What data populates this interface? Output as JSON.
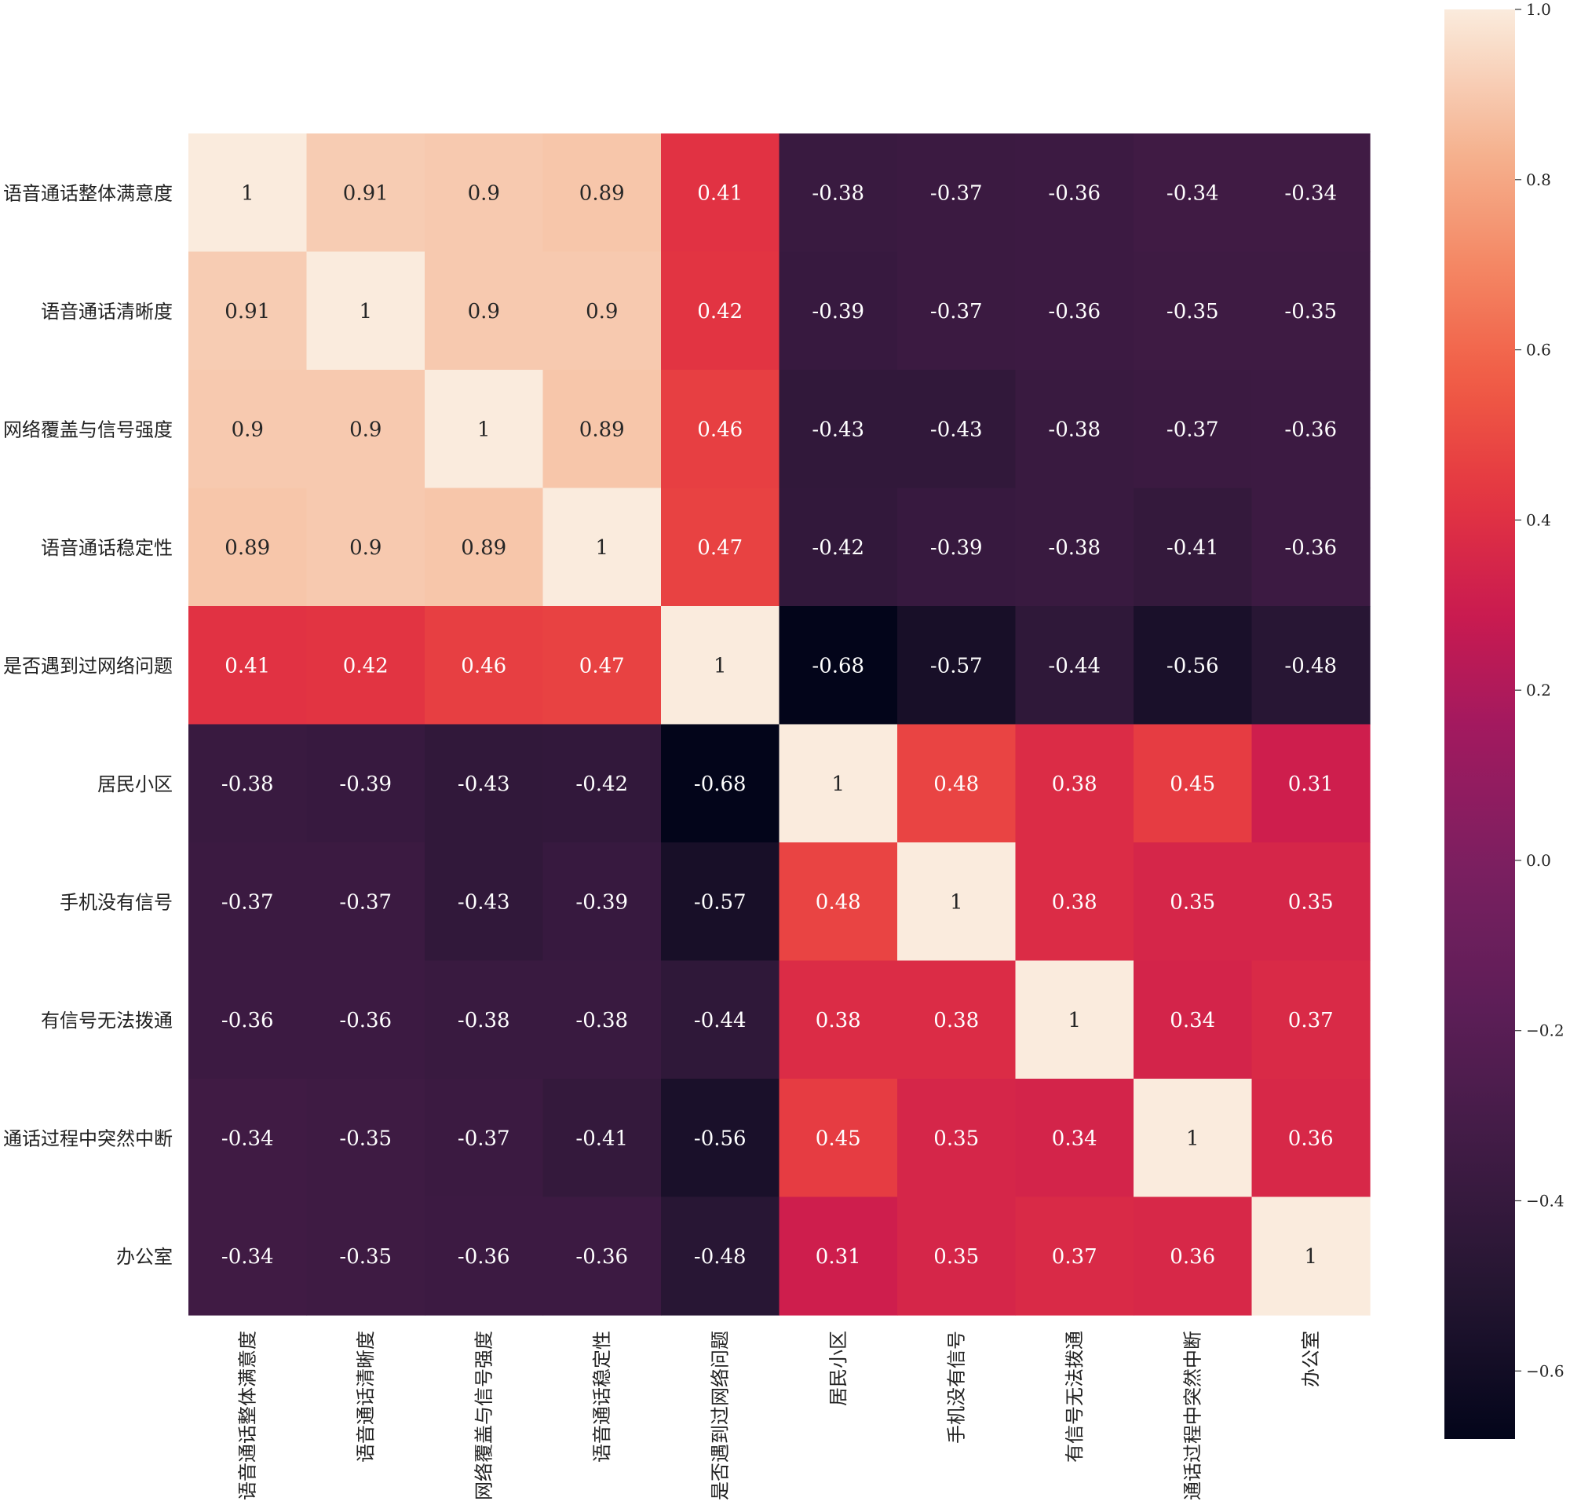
{
  "chart_data": {
    "type": "heatmap",
    "title": "",
    "labels": [
      "语音通话整体满意度",
      "语音通话清晰度",
      "网络覆盖与信号强度",
      "语音通话稳定性",
      "是否遇到过网络问题",
      "居民小区",
      "手机没有信号",
      "有信号无法拨通",
      "通话过程中突然中断",
      "办公室"
    ],
    "matrix": [
      [
        1,
        0.91,
        0.9,
        0.89,
        0.41,
        -0.38,
        -0.37,
        -0.36,
        -0.34,
        -0.34
      ],
      [
        0.91,
        1,
        0.9,
        0.9,
        0.42,
        -0.39,
        -0.37,
        -0.36,
        -0.35,
        -0.35
      ],
      [
        0.9,
        0.9,
        1,
        0.89,
        0.46,
        -0.43,
        -0.43,
        -0.38,
        -0.37,
        -0.36
      ],
      [
        0.89,
        0.9,
        0.89,
        1,
        0.47,
        -0.42,
        -0.39,
        -0.38,
        -0.41,
        -0.36
      ],
      [
        0.41,
        0.42,
        0.46,
        0.47,
        1,
        -0.68,
        -0.57,
        -0.44,
        -0.56,
        -0.48
      ],
      [
        -0.38,
        -0.39,
        -0.43,
        -0.42,
        -0.68,
        1,
        0.48,
        0.38,
        0.45,
        0.31
      ],
      [
        -0.37,
        -0.37,
        -0.43,
        -0.39,
        -0.57,
        0.48,
        1,
        0.38,
        0.35,
        0.35
      ],
      [
        -0.36,
        -0.36,
        -0.38,
        -0.38,
        -0.44,
        0.38,
        0.38,
        1,
        0.34,
        0.37
      ],
      [
        -0.34,
        -0.35,
        -0.37,
        -0.41,
        -0.56,
        0.45,
        0.35,
        0.34,
        1,
        0.36
      ],
      [
        -0.34,
        -0.35,
        -0.36,
        -0.36,
        -0.48,
        0.31,
        0.35,
        0.37,
        0.36,
        1
      ]
    ],
    "colorbar": {
      "range": [
        -0.68,
        1.0
      ],
      "ticks": [
        -0.6,
        -0.4,
        -0.2,
        0.0,
        0.2,
        0.4,
        0.6,
        0.8,
        1.0
      ],
      "tick_labels": [
        "−0.6",
        "−0.4",
        "−0.2",
        "0.0",
        "0.2",
        "0.4",
        "0.6",
        "0.8",
        "1.0"
      ],
      "colormap": "rocket"
    },
    "annotations": true
  }
}
